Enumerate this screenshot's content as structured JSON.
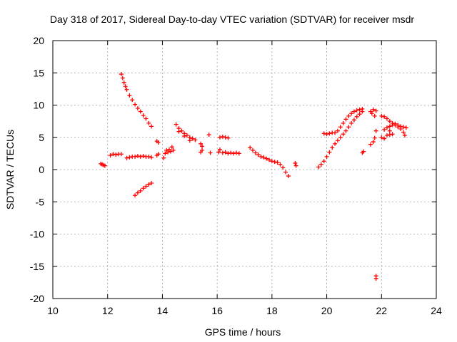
{
  "chart_data": {
    "type": "scatter",
    "title": "Day 318 of 2017, Sidereal Day-to-day VTEC variation (SDTVAR) for receiver msdr",
    "xlabel": "GPS time / hours",
    "ylabel": "SDTVAR / TECUs",
    "xlim": [
      10,
      24
    ],
    "ylim": [
      -20,
      20
    ],
    "xticks": [
      10,
      12,
      14,
      16,
      18,
      20,
      22,
      24
    ],
    "yticks": [
      20,
      15,
      10,
      5,
      0,
      -5,
      -10,
      -15,
      -20
    ],
    "grid": true,
    "marker": "+",
    "color": "#ff0000",
    "series": [
      {
        "name": "s1",
        "points": [
          [
            11.75,
            0.9
          ],
          [
            11.8,
            0.8
          ],
          [
            11.85,
            0.7
          ],
          [
            11.9,
            0.6
          ]
        ]
      },
      {
        "name": "s2",
        "points": [
          [
            12.1,
            2.2
          ],
          [
            12.2,
            2.4
          ],
          [
            12.3,
            2.3
          ],
          [
            12.4,
            2.4
          ],
          [
            12.5,
            2.4
          ]
        ]
      },
      {
        "name": "s3",
        "points": [
          [
            12.5,
            14.8
          ],
          [
            12.55,
            14.2
          ],
          [
            12.6,
            13.5
          ],
          [
            12.65,
            12.9
          ],
          [
            12.7,
            12.4
          ],
          [
            12.8,
            11.5
          ],
          [
            12.9,
            10.8
          ],
          [
            13.0,
            10.1
          ],
          [
            13.1,
            9.5
          ],
          [
            13.2,
            9.0
          ],
          [
            13.3,
            8.4
          ],
          [
            13.4,
            7.9
          ],
          [
            13.5,
            7.2
          ],
          [
            13.6,
            6.7
          ]
        ]
      },
      {
        "name": "s4",
        "points": [
          [
            12.7,
            1.8
          ],
          [
            12.8,
            1.9
          ],
          [
            12.9,
            2.0
          ],
          [
            13.0,
            2.0
          ],
          [
            13.1,
            2.1
          ],
          [
            13.2,
            2.0
          ],
          [
            13.3,
            2.1
          ],
          [
            13.4,
            2.0
          ],
          [
            13.5,
            2.0
          ],
          [
            13.6,
            1.9
          ]
        ]
      },
      {
        "name": "s5",
        "points": [
          [
            13.0,
            -4.0
          ],
          [
            13.1,
            -3.6
          ],
          [
            13.2,
            -3.3
          ],
          [
            13.3,
            -2.9
          ],
          [
            13.4,
            -2.6
          ],
          [
            13.5,
            -2.3
          ],
          [
            13.6,
            -2.1
          ]
        ]
      },
      {
        "name": "s6",
        "points": [
          [
            13.8,
            4.4
          ],
          [
            13.85,
            4.2
          ],
          [
            13.8,
            2.2
          ],
          [
            13.85,
            2.4
          ],
          [
            14.05,
            1.8
          ],
          [
            14.1,
            2.5
          ],
          [
            14.15,
            3.0
          ],
          [
            14.2,
            2.7
          ],
          [
            14.25,
            3.1
          ],
          [
            14.3,
            2.8
          ],
          [
            14.4,
            3.0
          ],
          [
            14.35,
            3.5
          ]
        ]
      },
      {
        "name": "s7",
        "points": [
          [
            14.5,
            7.0
          ],
          [
            14.6,
            6.4
          ],
          [
            14.7,
            6.0
          ],
          [
            14.8,
            5.6
          ],
          [
            14.9,
            5.3
          ],
          [
            15.0,
            5.0
          ],
          [
            15.1,
            4.8
          ],
          [
            15.2,
            4.6
          ],
          [
            14.6,
            5.9
          ],
          [
            14.8,
            5.2
          ],
          [
            15.0,
            4.5
          ]
        ]
      },
      {
        "name": "s8",
        "points": [
          [
            15.4,
            4.0
          ],
          [
            15.45,
            3.6
          ],
          [
            15.4,
            2.7
          ],
          [
            15.45,
            3.0
          ],
          [
            15.7,
            5.4
          ],
          [
            15.75,
            2.6
          ]
        ]
      },
      {
        "name": "s9",
        "points": [
          [
            16.1,
            5.0
          ],
          [
            16.2,
            5.1
          ],
          [
            16.3,
            5.0
          ],
          [
            16.4,
            4.9
          ]
        ]
      },
      {
        "name": "s10",
        "points": [
          [
            16.05,
            2.7
          ],
          [
            16.1,
            3.1
          ],
          [
            16.2,
            2.6
          ],
          [
            16.3,
            2.7
          ],
          [
            16.4,
            2.5
          ],
          [
            16.5,
            2.6
          ],
          [
            16.6,
            2.5
          ],
          [
            16.7,
            2.6
          ],
          [
            16.8,
            2.5
          ]
        ]
      },
      {
        "name": "s11",
        "points": [
          [
            17.2,
            3.4
          ],
          [
            17.3,
            3.0
          ],
          [
            17.4,
            2.6
          ],
          [
            17.5,
            2.3
          ],
          [
            17.6,
            2.0
          ],
          [
            17.7,
            1.9
          ],
          [
            17.8,
            1.7
          ],
          [
            17.9,
            1.5
          ],
          [
            18.0,
            1.3
          ],
          [
            18.1,
            1.2
          ],
          [
            18.2,
            1.1
          ],
          [
            18.3,
            0.8
          ],
          [
            18.4,
            0.3
          ],
          [
            18.5,
            -0.4
          ],
          [
            18.6,
            -1.0
          ]
        ]
      },
      {
        "name": "s12",
        "points": [
          [
            18.85,
            1.0
          ],
          [
            18.88,
            0.6
          ]
        ]
      },
      {
        "name": "s13",
        "points": [
          [
            19.7,
            0.4
          ],
          [
            19.8,
            0.8
          ],
          [
            19.9,
            1.3
          ],
          [
            20.0,
            2.0
          ],
          [
            20.1,
            2.7
          ],
          [
            20.2,
            3.4
          ],
          [
            20.3,
            4.0
          ],
          [
            20.4,
            4.5
          ],
          [
            20.5,
            5.0
          ],
          [
            20.6,
            5.5
          ],
          [
            20.7,
            6.0
          ],
          [
            20.8,
            6.6
          ],
          [
            20.9,
            7.2
          ],
          [
            21.0,
            7.7
          ],
          [
            21.1,
            8.2
          ],
          [
            21.2,
            8.6
          ],
          [
            21.3,
            9.0
          ]
        ]
      },
      {
        "name": "s14",
        "points": [
          [
            19.9,
            5.6
          ],
          [
            20.0,
            5.5
          ],
          [
            20.1,
            5.6
          ],
          [
            20.2,
            5.7
          ],
          [
            20.3,
            5.7
          ],
          [
            20.4,
            6.0
          ],
          [
            20.5,
            6.6
          ],
          [
            20.6,
            7.2
          ],
          [
            20.7,
            7.8
          ],
          [
            20.8,
            8.3
          ],
          [
            20.9,
            8.7
          ],
          [
            21.0,
            9.0
          ],
          [
            21.1,
            9.2
          ],
          [
            21.2,
            9.3
          ],
          [
            21.3,
            9.4
          ]
        ]
      },
      {
        "name": "s15",
        "points": [
          [
            21.3,
            2.6
          ],
          [
            21.35,
            2.8
          ],
          [
            21.6,
            3.9
          ],
          [
            21.7,
            4.3
          ],
          [
            21.75,
            4.9
          ],
          [
            21.8,
            6.0
          ],
          [
            21.6,
            9.0
          ],
          [
            21.7,
            9.3
          ],
          [
            21.8,
            9.1
          ],
          [
            21.65,
            8.7
          ],
          [
            21.75,
            8.3
          ]
        ]
      },
      {
        "name": "s16",
        "points": [
          [
            21.8,
            -16.5
          ],
          [
            21.8,
            -16.9
          ]
        ]
      },
      {
        "name": "s17",
        "points": [
          [
            22.0,
            8.3
          ],
          [
            22.1,
            8.2
          ],
          [
            22.2,
            7.9
          ],
          [
            22.3,
            7.5
          ],
          [
            22.4,
            7.2
          ],
          [
            22.5,
            6.9
          ],
          [
            22.6,
            6.6
          ],
          [
            22.7,
            6.3
          ],
          [
            22.8,
            5.8
          ],
          [
            22.85,
            5.3
          ],
          [
            22.1,
            6.2
          ],
          [
            22.2,
            6.5
          ],
          [
            22.3,
            6.7
          ],
          [
            22.4,
            6.9
          ],
          [
            22.5,
            7.1
          ],
          [
            22.6,
            6.9
          ],
          [
            22.7,
            6.7
          ],
          [
            22.8,
            6.6
          ],
          [
            22.9,
            6.5
          ],
          [
            22.0,
            5.0
          ],
          [
            22.1,
            4.8
          ],
          [
            22.2,
            5.3
          ],
          [
            22.3,
            5.4
          ],
          [
            22.4,
            5.5
          ],
          [
            22.3,
            6.0
          ]
        ]
      }
    ]
  }
}
